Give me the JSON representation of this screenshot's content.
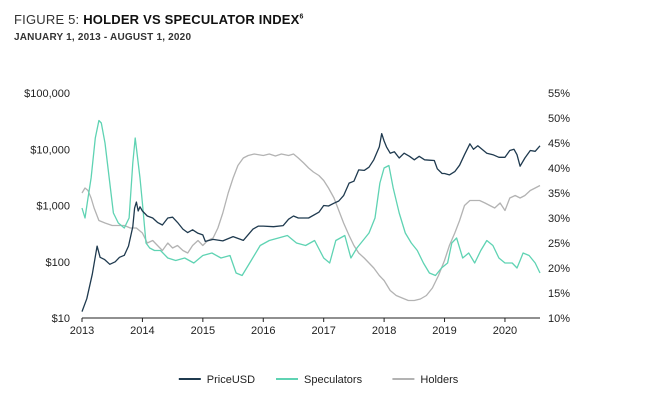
{
  "figure": {
    "label": "FIGURE 5:",
    "title": "HOLDER VS SPECULATOR INDEX",
    "superscript": "6",
    "subtitle": "JANUARY 1, 2013 - AUGUST 1, 2020"
  },
  "chart_data": {
    "type": "line",
    "x_scale": "time",
    "xlim": [
      2013.0,
      2020.58
    ],
    "x_ticks": [
      2013,
      2014,
      2015,
      2016,
      2017,
      2018,
      2019,
      2020
    ],
    "x_tick_labels": [
      "2013",
      "2014",
      "2015",
      "2016",
      "2017",
      "2018",
      "2019",
      "2020"
    ],
    "y_left": {
      "scale": "log",
      "ylim": [
        10,
        100000
      ],
      "ticks": [
        100000,
        10000,
        1000,
        100,
        10
      ],
      "tick_labels": [
        "$100,000",
        "$10,000",
        "$1,000",
        "$100",
        "$10"
      ]
    },
    "y_right": {
      "scale": "linear",
      "ylim": [
        10,
        55
      ],
      "ticks": [
        55,
        50,
        45,
        40,
        35,
        30,
        25,
        20,
        15,
        10
      ],
      "tick_labels": [
        "55%",
        "50%",
        "45%",
        "40%",
        "35%",
        "30%",
        "25%",
        "20%",
        "15%",
        "10%"
      ]
    },
    "grid": false,
    "legend": "bottom",
    "colors": {
      "price": "#1f3a4f",
      "speculators": "#5fd3b3",
      "holders": "#b3b3b3"
    },
    "series": [
      {
        "name": "PriceUSD",
        "axis": "left",
        "color": "#1f3a4f",
        "x": [
          2013.0,
          2013.08,
          2013.17,
          2013.25,
          2013.3,
          2013.37,
          2013.46,
          2013.55,
          2013.62,
          2013.7,
          2013.77,
          2013.84,
          2013.87,
          2013.9,
          2013.93,
          2013.96,
          2014.0,
          2014.08,
          2014.17,
          2014.25,
          2014.33,
          2014.42,
          2014.5,
          2014.58,
          2014.67,
          2014.75,
          2014.83,
          2014.92,
          2015.0,
          2015.04,
          2015.17,
          2015.33,
          2015.5,
          2015.67,
          2015.83,
          2015.92,
          2016.0,
          2016.17,
          2016.33,
          2016.42,
          2016.5,
          2016.58,
          2016.75,
          2016.92,
          2017.0,
          2017.08,
          2017.17,
          2017.25,
          2017.33,
          2017.42,
          2017.5,
          2017.58,
          2017.67,
          2017.75,
          2017.83,
          2017.92,
          2017.96,
          2018.0,
          2018.04,
          2018.1,
          2018.17,
          2018.25,
          2018.33,
          2018.42,
          2018.5,
          2018.58,
          2018.67,
          2018.75,
          2018.83,
          2018.88,
          2018.96,
          2019.0,
          2019.08,
          2019.17,
          2019.25,
          2019.33,
          2019.42,
          2019.48,
          2019.55,
          2019.62,
          2019.7,
          2019.8,
          2019.9,
          2020.0,
          2020.08,
          2020.15,
          2020.2,
          2020.25,
          2020.33,
          2020.42,
          2020.5,
          2020.58
        ],
        "values": [
          13,
          22,
          60,
          190,
          120,
          110,
          90,
          100,
          120,
          130,
          190,
          420,
          900,
          1150,
          800,
          950,
          800,
          650,
          600,
          500,
          450,
          600,
          620,
          500,
          380,
          330,
          370,
          320,
          300,
          230,
          250,
          235,
          280,
          240,
          380,
          430,
          430,
          420,
          440,
          570,
          650,
          600,
          600,
          760,
          1000,
          980,
          1100,
          1200,
          1500,
          2500,
          2700,
          4300,
          4200,
          4800,
          6500,
          11000,
          19000,
          14000,
          11000,
          8500,
          9000,
          7000,
          8500,
          7500,
          6500,
          7500,
          6500,
          6400,
          6300,
          4500,
          3700,
          3700,
          3500,
          4000,
          5200,
          8000,
          12500,
          10000,
          11500,
          10000,
          8500,
          8000,
          7200,
          7200,
          9500,
          10000,
          8000,
          5000,
          7000,
          9500,
          9200,
          11500
        ]
      },
      {
        "name": "Speculators",
        "axis": "right",
        "color": "#5fd3b3",
        "x": [
          2013.0,
          2013.05,
          2013.1,
          2013.15,
          2013.22,
          2013.28,
          2013.32,
          2013.38,
          2013.45,
          2013.52,
          2013.6,
          2013.7,
          2013.78,
          2013.84,
          2013.88,
          2013.92,
          2013.96,
          2014.0,
          2014.06,
          2014.12,
          2014.2,
          2014.3,
          2014.42,
          2014.55,
          2014.7,
          2014.85,
          2015.0,
          2015.15,
          2015.3,
          2015.45,
          2015.55,
          2015.65,
          2015.8,
          2015.95,
          2016.1,
          2016.25,
          2016.4,
          2016.55,
          2016.7,
          2016.85,
          2017.0,
          2017.1,
          2017.2,
          2017.35,
          2017.45,
          2017.55,
          2017.65,
          2017.75,
          2017.85,
          2017.93,
          2018.0,
          2018.08,
          2018.15,
          2018.25,
          2018.35,
          2018.45,
          2018.55,
          2018.65,
          2018.75,
          2018.85,
          2018.95,
          2019.05,
          2019.12,
          2019.2,
          2019.3,
          2019.4,
          2019.5,
          2019.6,
          2019.7,
          2019.8,
          2019.9,
          2020.0,
          2020.12,
          2020.2,
          2020.25,
          2020.3,
          2020.4,
          2020.5,
          2020.58
        ],
        "values": [
          32,
          30,
          34,
          38,
          46,
          49.5,
          49,
          45,
          38,
          31,
          29,
          28,
          30,
          41,
          46,
          42,
          38,
          33,
          25,
          24,
          23.5,
          23.5,
          22,
          21.5,
          22,
          21,
          22.5,
          23,
          22,
          22.5,
          19,
          18.5,
          21.5,
          24.5,
          25.5,
          26,
          26.5,
          25,
          24.5,
          25.5,
          22,
          21,
          25.5,
          26.5,
          22,
          24,
          25.5,
          27,
          30,
          37,
          40,
          40.5,
          36,
          31,
          27,
          25,
          23.5,
          21,
          19,
          18.5,
          20,
          21,
          25,
          26,
          22,
          23,
          21,
          23.5,
          25.5,
          24.5,
          22,
          21,
          21,
          20,
          21.5,
          23,
          22.5,
          21,
          19
        ]
      },
      {
        "name": "Holders",
        "axis": "right",
        "color": "#b3b3b3",
        "x": [
          2013.0,
          2013.05,
          2013.1,
          2013.15,
          2013.2,
          2013.28,
          2013.38,
          2013.5,
          2013.6,
          2013.7,
          2013.8,
          2013.9,
          2014.0,
          2014.08,
          2014.17,
          2014.25,
          2014.33,
          2014.42,
          2014.5,
          2014.58,
          2014.67,
          2014.75,
          2014.83,
          2014.92,
          2015.0,
          2015.08,
          2015.17,
          2015.25,
          2015.33,
          2015.42,
          2015.5,
          2015.58,
          2015.67,
          2015.75,
          2015.85,
          2016.0,
          2016.1,
          2016.2,
          2016.3,
          2016.42,
          2016.5,
          2016.58,
          2016.67,
          2016.75,
          2016.83,
          2016.92,
          2017.0,
          2017.08,
          2017.17,
          2017.25,
          2017.33,
          2017.42,
          2017.5,
          2017.58,
          2017.67,
          2017.75,
          2017.83,
          2017.92,
          2018.0,
          2018.1,
          2018.2,
          2018.3,
          2018.4,
          2018.5,
          2018.6,
          2018.7,
          2018.8,
          2018.9,
          2019.0,
          2019.08,
          2019.17,
          2019.25,
          2019.33,
          2019.42,
          2019.5,
          2019.58,
          2019.67,
          2019.75,
          2019.83,
          2019.92,
          2020.0,
          2020.08,
          2020.17,
          2020.25,
          2020.33,
          2020.42,
          2020.5,
          2020.58
        ],
        "values": [
          35,
          36,
          35.5,
          34,
          32,
          29.5,
          29,
          28.5,
          28.5,
          28.5,
          28,
          28,
          27,
          25,
          25.5,
          24.5,
          23.5,
          25,
          24,
          24.5,
          23.5,
          23,
          24.5,
          25.5,
          24.5,
          25.5,
          26,
          28,
          31,
          35,
          38,
          40.5,
          42,
          42.5,
          42.8,
          42.5,
          42.8,
          42.4,
          42.8,
          42.5,
          42.8,
          42,
          41,
          40,
          39.2,
          38.5,
          37.5,
          36,
          34,
          31.5,
          29,
          26.5,
          24.5,
          23,
          22,
          21,
          20,
          18.5,
          17.5,
          15.5,
          14.5,
          14,
          13.5,
          13.5,
          13.8,
          14.5,
          16,
          18.5,
          21.5,
          24.5,
          27,
          29.5,
          32.5,
          33.5,
          33.5,
          33.5,
          33,
          32.5,
          32,
          33,
          31.5,
          34,
          34.5,
          34,
          34.5,
          35.5,
          36,
          36.5
        ]
      }
    ]
  }
}
